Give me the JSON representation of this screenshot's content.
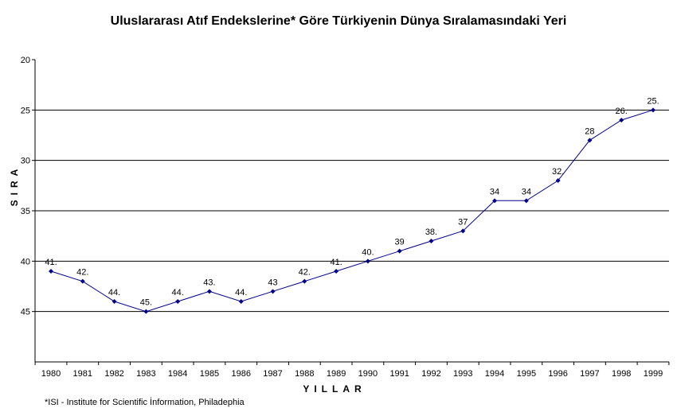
{
  "chart_data": {
    "type": "line",
    "title": "Uluslararası Atıf Endekslerine* Göre Türkiyenin Dünya Sıralamasındaki Yeri",
    "xlabel": "YILLAR",
    "ylabel": "SIRA",
    "categories": [
      "1980",
      "1981",
      "1982",
      "1983",
      "1984",
      "1985",
      "1986",
      "1987",
      "1988",
      "1989",
      "1990",
      "1991",
      "1992",
      "1993",
      "1994",
      "1995",
      "1996",
      "1997",
      "1998",
      "1999"
    ],
    "series": [
      {
        "values": [
          41,
          42,
          44,
          45,
          44,
          43,
          44,
          43,
          42,
          41,
          40,
          39,
          38,
          37,
          34,
          34,
          32,
          28,
          26,
          25
        ]
      }
    ],
    "data_labels": [
      "41.",
      "42.",
      "44.",
      "45.",
      "44.",
      "43.",
      "44.",
      "43",
      "42.",
      "41.",
      "40.",
      "39",
      "38.",
      "37",
      "34",
      "34",
      "32.",
      "28",
      "26.",
      "25."
    ],
    "ylim": [
      20,
      50
    ],
    "y_inverted": true,
    "yticks": [
      20,
      25,
      30,
      35,
      40,
      45
    ],
    "grid": true,
    "line_color": "#00008b",
    "grid_color": "#000000",
    "footnote": "*ISI - Institute for Scientific İnformation, Philadephia"
  }
}
